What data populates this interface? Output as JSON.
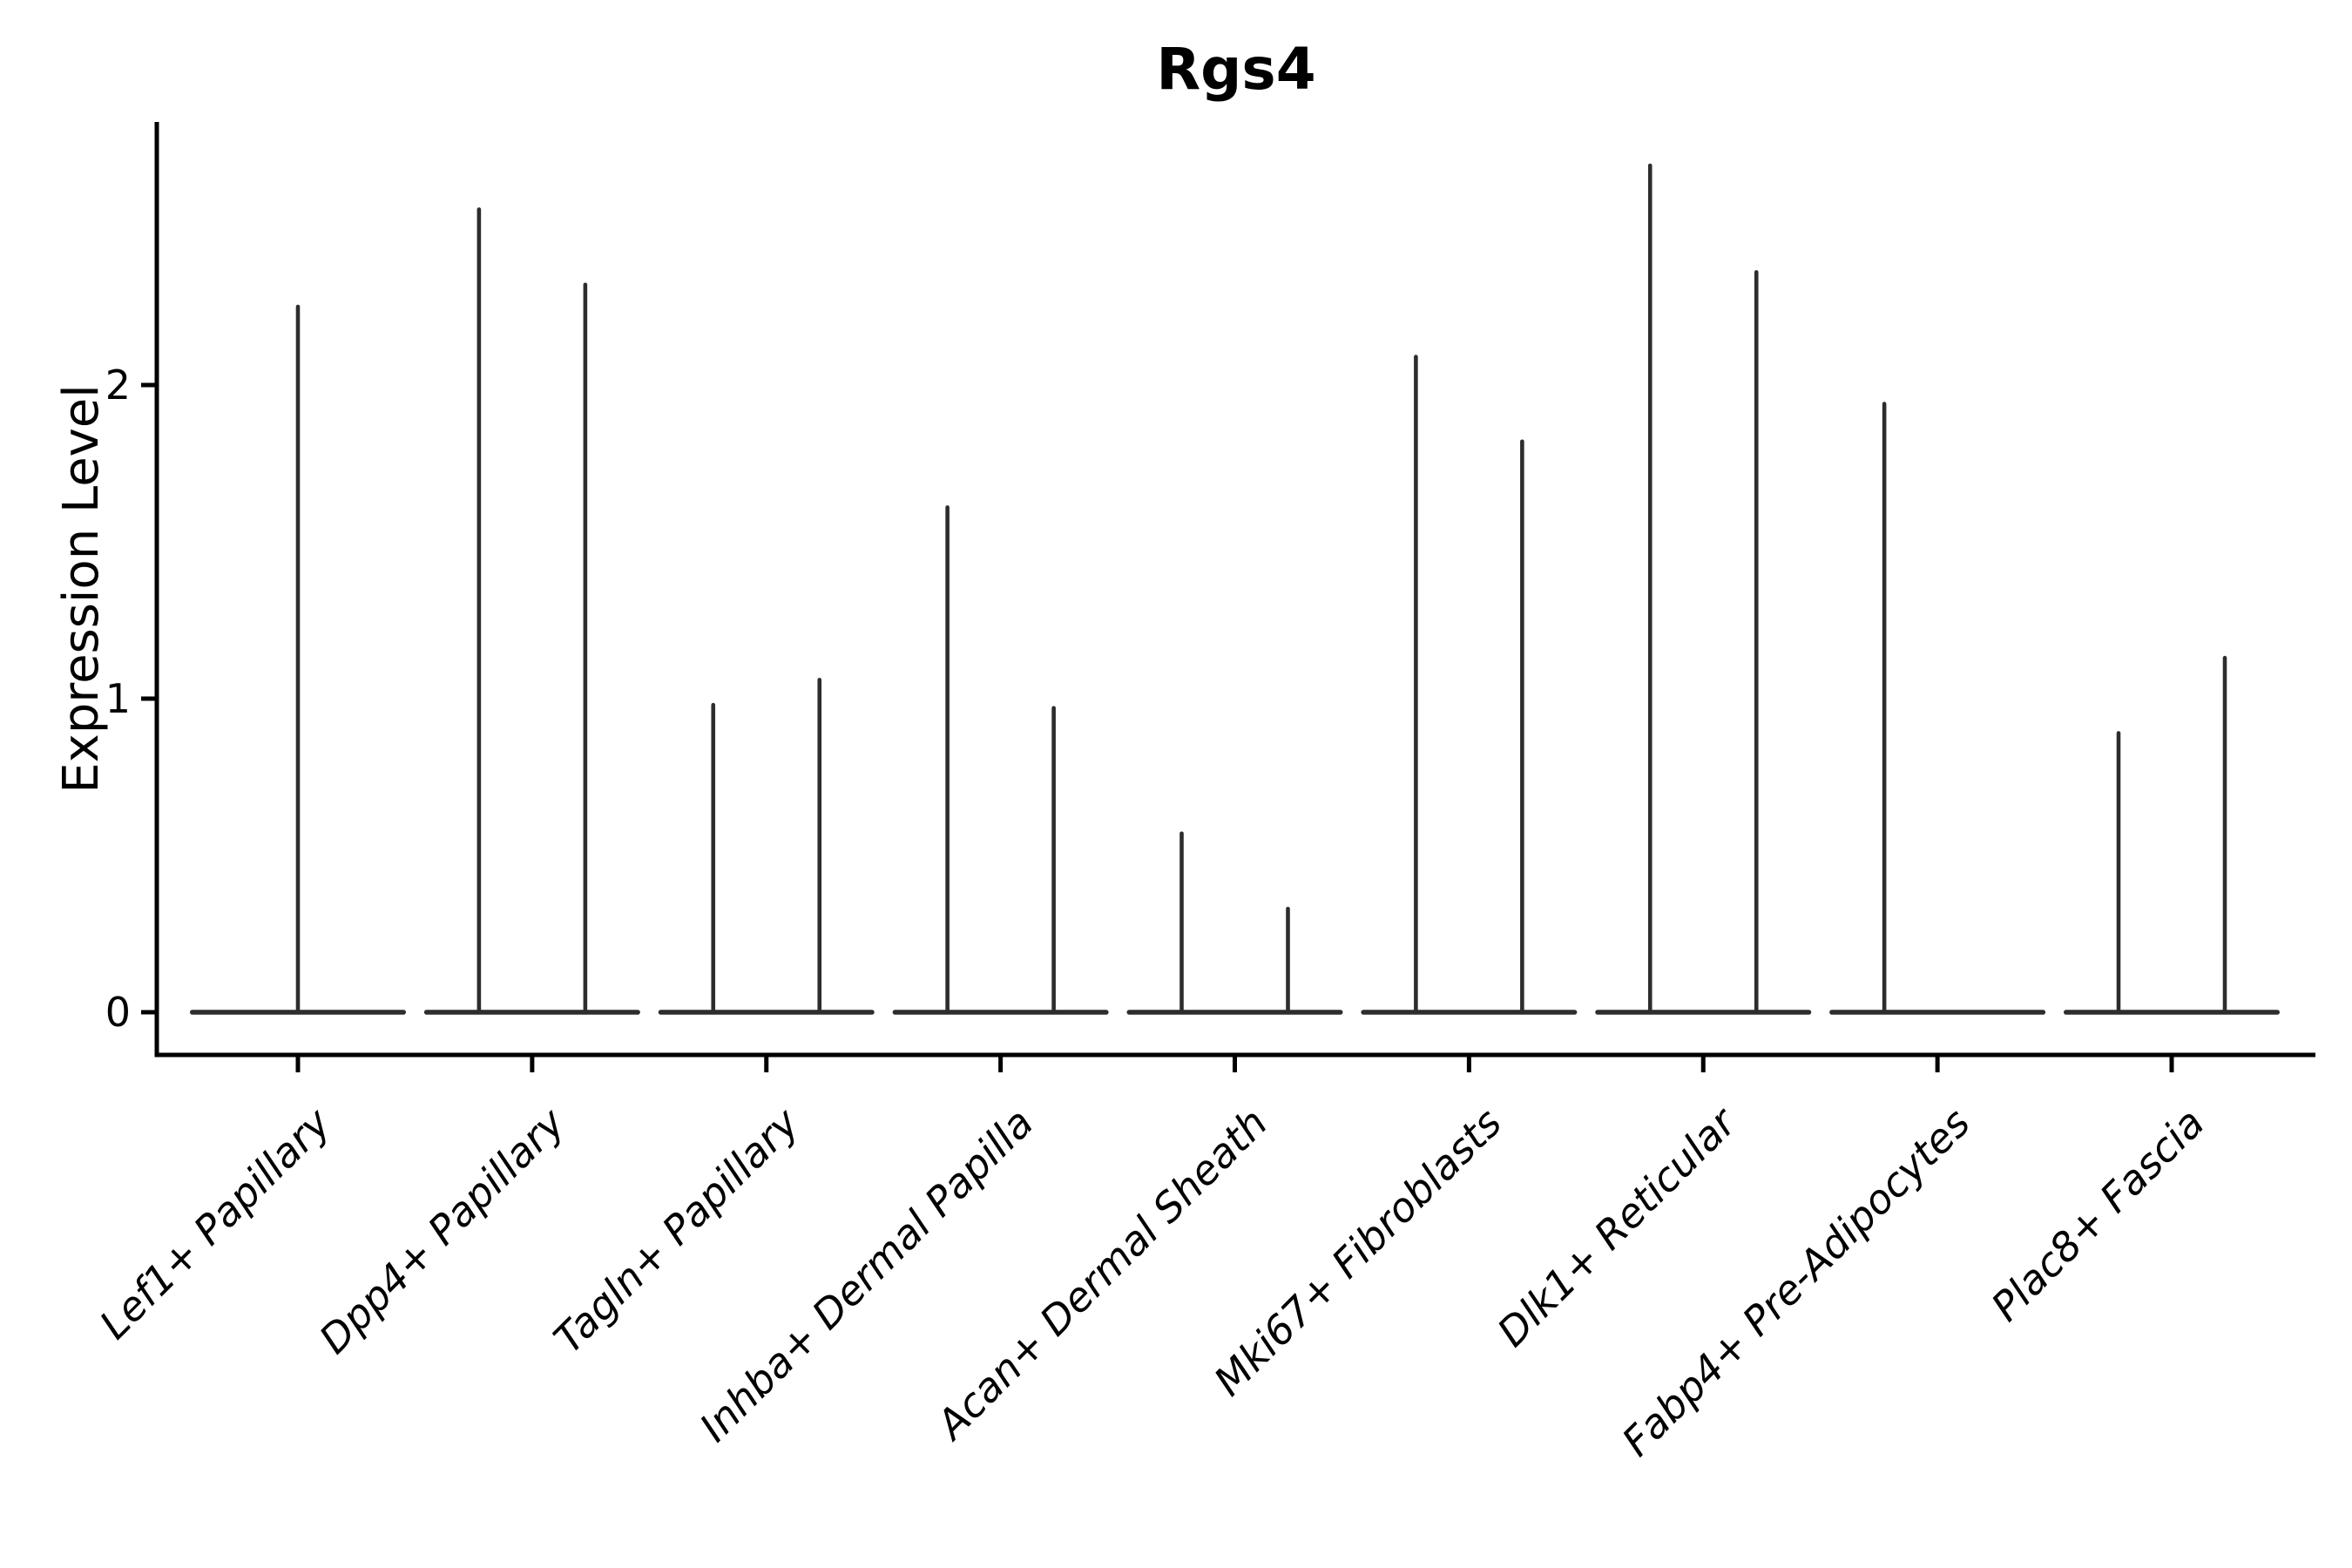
{
  "background_color": "#ffffff",
  "chart_data": {
    "type": "violin",
    "title": "Rgs4",
    "ylabel": "Expression Level",
    "xlabel": "",
    "yticks": [
      0,
      1,
      2
    ],
    "ylim": [
      -0.14,
      2.84
    ],
    "grid": false,
    "legend": "none",
    "ink_color": "#2d2d2d",
    "spine_color": "#000000",
    "categories": [
      "Lef1+ Papillary",
      "Dpp4+ Papillary",
      "Tagln+ Papillary",
      "Inhba+ Dermal Papilla",
      "Acan+ Dermal Sheath",
      "Mki67+ Fibroblasts",
      "Dlk1+ Reticular",
      "Fabp4+ Pre-Adipocytes",
      "Plac8+ Fascia"
    ],
    "violins": [
      {
        "category": "Lef1+ Papillary",
        "baseline_value": 0,
        "spikes": [
          {
            "pos": "center",
            "max": 2.25
          }
        ]
      },
      {
        "category": "Dpp4+ Papillary",
        "baseline_value": 0,
        "spikes": [
          {
            "pos": "left",
            "max": 2.56
          },
          {
            "pos": "right",
            "max": 2.32
          }
        ]
      },
      {
        "category": "Tagln+ Papillary",
        "baseline_value": 0,
        "spikes": [
          {
            "pos": "left",
            "max": 0.98
          },
          {
            "pos": "right",
            "max": 1.06
          }
        ]
      },
      {
        "category": "Inhba+ Dermal Papilla",
        "baseline_value": 0,
        "spikes": [
          {
            "pos": "left",
            "max": 1.61
          },
          {
            "pos": "right",
            "max": 0.97
          }
        ]
      },
      {
        "category": "Acan+ Dermal Sheath",
        "baseline_value": 0,
        "spikes": [
          {
            "pos": "left",
            "max": 0.57
          },
          {
            "pos": "right",
            "max": 0.33
          }
        ]
      },
      {
        "category": "Mki67+ Fibroblasts",
        "baseline_value": 0,
        "spikes": [
          {
            "pos": "left",
            "max": 2.09
          },
          {
            "pos": "right",
            "max": 1.82
          }
        ]
      },
      {
        "category": "Dlk1+ Reticular",
        "baseline_value": 0,
        "spikes": [
          {
            "pos": "left",
            "max": 2.7
          },
          {
            "pos": "right",
            "max": 2.36
          }
        ]
      },
      {
        "category": "Fabp4+ Pre-Adipocytes",
        "baseline_value": 0,
        "spikes": [
          {
            "pos": "left",
            "max": 1.94
          }
        ]
      },
      {
        "category": "Plac8+ Fascia",
        "baseline_value": 0,
        "spikes": [
          {
            "pos": "left",
            "max": 0.89
          },
          {
            "pos": "right",
            "max": 1.13
          }
        ]
      }
    ]
  }
}
